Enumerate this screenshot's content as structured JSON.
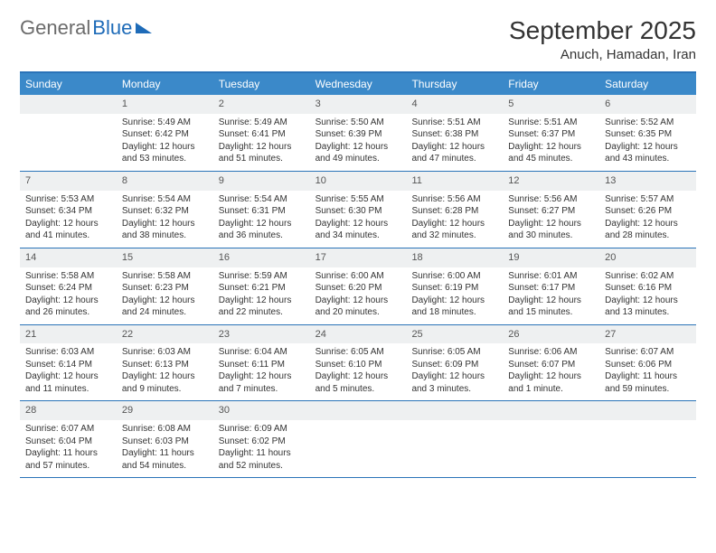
{
  "logo": {
    "part1": "General",
    "part2": "Blue"
  },
  "title": "September 2025",
  "location": "Anuch, Hamadan, Iran",
  "headers": [
    "Sunday",
    "Monday",
    "Tuesday",
    "Wednesday",
    "Thursday",
    "Friday",
    "Saturday"
  ],
  "colors": {
    "headerBg": "#3b89c9",
    "borderTop": "#2a73b8",
    "dayBg": "#eef0f1",
    "logoGray": "#6b6b6b",
    "logoBlue": "#1e6bb8"
  },
  "weeks": [
    [
      {
        "n": "",
        "sunrise": "",
        "sunset": "",
        "daylight": ""
      },
      {
        "n": "1",
        "sunrise": "Sunrise: 5:49 AM",
        "sunset": "Sunset: 6:42 PM",
        "daylight": "Daylight: 12 hours and 53 minutes."
      },
      {
        "n": "2",
        "sunrise": "Sunrise: 5:49 AM",
        "sunset": "Sunset: 6:41 PM",
        "daylight": "Daylight: 12 hours and 51 minutes."
      },
      {
        "n": "3",
        "sunrise": "Sunrise: 5:50 AM",
        "sunset": "Sunset: 6:39 PM",
        "daylight": "Daylight: 12 hours and 49 minutes."
      },
      {
        "n": "4",
        "sunrise": "Sunrise: 5:51 AM",
        "sunset": "Sunset: 6:38 PM",
        "daylight": "Daylight: 12 hours and 47 minutes."
      },
      {
        "n": "5",
        "sunrise": "Sunrise: 5:51 AM",
        "sunset": "Sunset: 6:37 PM",
        "daylight": "Daylight: 12 hours and 45 minutes."
      },
      {
        "n": "6",
        "sunrise": "Sunrise: 5:52 AM",
        "sunset": "Sunset: 6:35 PM",
        "daylight": "Daylight: 12 hours and 43 minutes."
      }
    ],
    [
      {
        "n": "7",
        "sunrise": "Sunrise: 5:53 AM",
        "sunset": "Sunset: 6:34 PM",
        "daylight": "Daylight: 12 hours and 41 minutes."
      },
      {
        "n": "8",
        "sunrise": "Sunrise: 5:54 AM",
        "sunset": "Sunset: 6:32 PM",
        "daylight": "Daylight: 12 hours and 38 minutes."
      },
      {
        "n": "9",
        "sunrise": "Sunrise: 5:54 AM",
        "sunset": "Sunset: 6:31 PM",
        "daylight": "Daylight: 12 hours and 36 minutes."
      },
      {
        "n": "10",
        "sunrise": "Sunrise: 5:55 AM",
        "sunset": "Sunset: 6:30 PM",
        "daylight": "Daylight: 12 hours and 34 minutes."
      },
      {
        "n": "11",
        "sunrise": "Sunrise: 5:56 AM",
        "sunset": "Sunset: 6:28 PM",
        "daylight": "Daylight: 12 hours and 32 minutes."
      },
      {
        "n": "12",
        "sunrise": "Sunrise: 5:56 AM",
        "sunset": "Sunset: 6:27 PM",
        "daylight": "Daylight: 12 hours and 30 minutes."
      },
      {
        "n": "13",
        "sunrise": "Sunrise: 5:57 AM",
        "sunset": "Sunset: 6:26 PM",
        "daylight": "Daylight: 12 hours and 28 minutes."
      }
    ],
    [
      {
        "n": "14",
        "sunrise": "Sunrise: 5:58 AM",
        "sunset": "Sunset: 6:24 PM",
        "daylight": "Daylight: 12 hours and 26 minutes."
      },
      {
        "n": "15",
        "sunrise": "Sunrise: 5:58 AM",
        "sunset": "Sunset: 6:23 PM",
        "daylight": "Daylight: 12 hours and 24 minutes."
      },
      {
        "n": "16",
        "sunrise": "Sunrise: 5:59 AM",
        "sunset": "Sunset: 6:21 PM",
        "daylight": "Daylight: 12 hours and 22 minutes."
      },
      {
        "n": "17",
        "sunrise": "Sunrise: 6:00 AM",
        "sunset": "Sunset: 6:20 PM",
        "daylight": "Daylight: 12 hours and 20 minutes."
      },
      {
        "n": "18",
        "sunrise": "Sunrise: 6:00 AM",
        "sunset": "Sunset: 6:19 PM",
        "daylight": "Daylight: 12 hours and 18 minutes."
      },
      {
        "n": "19",
        "sunrise": "Sunrise: 6:01 AM",
        "sunset": "Sunset: 6:17 PM",
        "daylight": "Daylight: 12 hours and 15 minutes."
      },
      {
        "n": "20",
        "sunrise": "Sunrise: 6:02 AM",
        "sunset": "Sunset: 6:16 PM",
        "daylight": "Daylight: 12 hours and 13 minutes."
      }
    ],
    [
      {
        "n": "21",
        "sunrise": "Sunrise: 6:03 AM",
        "sunset": "Sunset: 6:14 PM",
        "daylight": "Daylight: 12 hours and 11 minutes."
      },
      {
        "n": "22",
        "sunrise": "Sunrise: 6:03 AM",
        "sunset": "Sunset: 6:13 PM",
        "daylight": "Daylight: 12 hours and 9 minutes."
      },
      {
        "n": "23",
        "sunrise": "Sunrise: 6:04 AM",
        "sunset": "Sunset: 6:11 PM",
        "daylight": "Daylight: 12 hours and 7 minutes."
      },
      {
        "n": "24",
        "sunrise": "Sunrise: 6:05 AM",
        "sunset": "Sunset: 6:10 PM",
        "daylight": "Daylight: 12 hours and 5 minutes."
      },
      {
        "n": "25",
        "sunrise": "Sunrise: 6:05 AM",
        "sunset": "Sunset: 6:09 PM",
        "daylight": "Daylight: 12 hours and 3 minutes."
      },
      {
        "n": "26",
        "sunrise": "Sunrise: 6:06 AM",
        "sunset": "Sunset: 6:07 PM",
        "daylight": "Daylight: 12 hours and 1 minute."
      },
      {
        "n": "27",
        "sunrise": "Sunrise: 6:07 AM",
        "sunset": "Sunset: 6:06 PM",
        "daylight": "Daylight: 11 hours and 59 minutes."
      }
    ],
    [
      {
        "n": "28",
        "sunrise": "Sunrise: 6:07 AM",
        "sunset": "Sunset: 6:04 PM",
        "daylight": "Daylight: 11 hours and 57 minutes."
      },
      {
        "n": "29",
        "sunrise": "Sunrise: 6:08 AM",
        "sunset": "Sunset: 6:03 PM",
        "daylight": "Daylight: 11 hours and 54 minutes."
      },
      {
        "n": "30",
        "sunrise": "Sunrise: 6:09 AM",
        "sunset": "Sunset: 6:02 PM",
        "daylight": "Daylight: 11 hours and 52 minutes."
      },
      {
        "n": "",
        "sunrise": "",
        "sunset": "",
        "daylight": ""
      },
      {
        "n": "",
        "sunrise": "",
        "sunset": "",
        "daylight": ""
      },
      {
        "n": "",
        "sunrise": "",
        "sunset": "",
        "daylight": ""
      },
      {
        "n": "",
        "sunrise": "",
        "sunset": "",
        "daylight": ""
      }
    ]
  ]
}
